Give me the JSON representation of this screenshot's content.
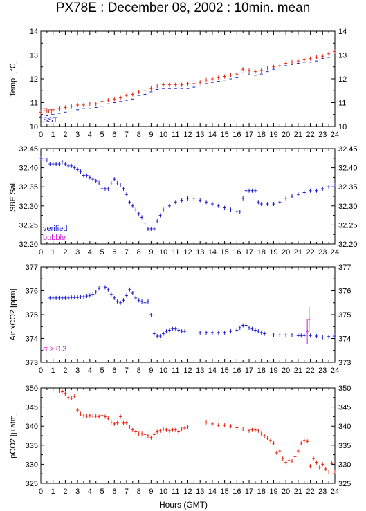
{
  "title": "PX78E : December 08, 2002 : 10min. mean",
  "colors": {
    "red": "#e8210f",
    "blue": "#1b1bcc",
    "magenta": "#d21ad2",
    "axis": "#000000"
  },
  "chart_data": [
    {
      "type": "scatter",
      "ylabel": "Temp. [°C]",
      "xlim": [
        0,
        24
      ],
      "ylim": [
        10,
        14
      ],
      "xticks": [
        0,
        1,
        2,
        3,
        4,
        5,
        6,
        7,
        8,
        9,
        10,
        11,
        12,
        13,
        14,
        15,
        16,
        17,
        18,
        19,
        20,
        21,
        22,
        23,
        24
      ],
      "yticks": [
        10,
        11,
        12,
        13,
        14
      ],
      "legend": {
        "placement": "bottom-left"
      },
      "series": [
        {
          "name": "Eq",
          "color": "red",
          "errorbars": true,
          "x": [
            0,
            0.5,
            1,
            1.5,
            2,
            2.5,
            3,
            3.5,
            4,
            4.5,
            5,
            5.5,
            6,
            6.5,
            7,
            7.5,
            8,
            8.5,
            9,
            9.5,
            10,
            10.5,
            11,
            11.5,
            12,
            12.5,
            13,
            13.5,
            14,
            14.5,
            15,
            15.5,
            16,
            16.5,
            17,
            17.5,
            18,
            18.5,
            19,
            19.5,
            20,
            20.5,
            21,
            21.5,
            22,
            22.5,
            23,
            23.5,
            24
          ],
          "y": [
            10.6,
            10.65,
            10.7,
            10.75,
            10.8,
            10.85,
            10.9,
            10.9,
            10.95,
            10.95,
            11.05,
            11.1,
            11.15,
            11.2,
            11.3,
            11.35,
            11.45,
            11.5,
            11.6,
            11.7,
            11.75,
            11.75,
            11.75,
            11.75,
            11.8,
            11.8,
            11.85,
            11.95,
            12.0,
            12.05,
            12.1,
            12.15,
            12.2,
            12.4,
            12.35,
            12.3,
            12.35,
            12.45,
            12.5,
            12.55,
            12.65,
            12.7,
            12.75,
            12.8,
            12.85,
            12.9,
            12.95,
            13.05,
            13.15
          ]
        },
        {
          "name": "SST",
          "color": "blue",
          "errorbars": false,
          "x": [
            0,
            0.5,
            1,
            1.5,
            2,
            2.5,
            3,
            3.5,
            4,
            4.5,
            5,
            5.5,
            6,
            6.5,
            7,
            7.5,
            8,
            8.5,
            9,
            9.5,
            10,
            10.5,
            11,
            11.5,
            12,
            12.5,
            13,
            13.5,
            14,
            14.5,
            15,
            15.5,
            16,
            16.5,
            17,
            17.5,
            18,
            18.5,
            19,
            19.5,
            20,
            20.5,
            21,
            21.5,
            22,
            22.5,
            23,
            23.5,
            24
          ],
          "y": [
            10.4,
            10.45,
            10.5,
            10.55,
            10.6,
            10.65,
            10.7,
            10.75,
            10.75,
            10.8,
            10.85,
            10.95,
            11.0,
            11.05,
            11.1,
            11.15,
            11.3,
            11.35,
            11.45,
            11.55,
            11.6,
            11.6,
            11.6,
            11.6,
            11.6,
            11.65,
            11.7,
            11.8,
            11.85,
            11.9,
            11.95,
            12.0,
            12.05,
            12.25,
            12.2,
            12.15,
            12.2,
            12.3,
            12.4,
            12.45,
            12.55,
            12.6,
            12.65,
            12.7,
            12.7,
            12.75,
            12.85,
            12.9,
            13.0
          ]
        }
      ]
    },
    {
      "type": "scatter",
      "ylabel": "SBE Sal.",
      "xlim": [
        0,
        24
      ],
      "ylim": [
        32.2,
        32.45
      ],
      "xticks": [
        0,
        1,
        2,
        3,
        4,
        5,
        6,
        7,
        8,
        9,
        10,
        11,
        12,
        13,
        14,
        15,
        16,
        17,
        18,
        19,
        20,
        21,
        22,
        23,
        24
      ],
      "yticks": [
        32.2,
        32.25,
        32.3,
        32.35,
        32.4,
        32.45
      ],
      "legend": {
        "placement": "bottom-left"
      },
      "series": [
        {
          "name": "verified",
          "color": "blue",
          "errorbars": true,
          "x": [
            0,
            0.25,
            0.5,
            0.75,
            1,
            1.25,
            1.5,
            1.75,
            2,
            2.25,
            2.5,
            2.75,
            3,
            3.25,
            3.5,
            3.75,
            4,
            4.25,
            4.5,
            4.75,
            5,
            5.25,
            5.5,
            5.75,
            6,
            6.25,
            6.5,
            6.75,
            7,
            7.25,
            7.5,
            7.75,
            8,
            8.25,
            8.5,
            8.75,
            9,
            9.25,
            9.5,
            9.75,
            10,
            10.5,
            11,
            11.5,
            12,
            12.5,
            13,
            13.5,
            14,
            14.5,
            15,
            15.5,
            16,
            16.25,
            16.5,
            16.75,
            17,
            17.25,
            17.5,
            17.75,
            18,
            18.5,
            19,
            19.5,
            20,
            20.5,
            21,
            21.5,
            22,
            22.5,
            23,
            23.5,
            24
          ],
          "y": [
            32.425,
            32.42,
            32.42,
            32.41,
            32.41,
            32.41,
            32.41,
            32.415,
            32.41,
            32.405,
            32.405,
            32.4,
            32.395,
            32.39,
            32.38,
            32.38,
            32.375,
            32.37,
            32.365,
            32.36,
            32.345,
            32.345,
            32.345,
            32.36,
            32.37,
            32.36,
            32.355,
            32.345,
            32.33,
            32.31,
            32.3,
            32.29,
            32.28,
            32.27,
            32.255,
            32.24,
            32.24,
            32.24,
            32.26,
            32.275,
            32.29,
            32.3,
            32.31,
            32.315,
            32.32,
            32.32,
            32.315,
            32.31,
            32.305,
            32.3,
            32.295,
            32.29,
            32.285,
            32.285,
            32.32,
            32.34,
            32.34,
            32.34,
            32.34,
            32.31,
            32.305,
            32.305,
            32.305,
            32.31,
            32.32,
            32.325,
            32.33,
            32.335,
            32.34,
            32.34,
            32.345,
            32.35,
            32.355
          ]
        },
        {
          "name": "bubble",
          "color": "magenta",
          "errorbars": false,
          "x": [],
          "y": []
        }
      ]
    },
    {
      "type": "scatter",
      "ylabel": "Air xCO2 [ppm]",
      "xlim": [
        0,
        24
      ],
      "ylim": [
        373,
        377
      ],
      "xticks": [
        0,
        1,
        2,
        3,
        4,
        5,
        6,
        7,
        8,
        9,
        10,
        11,
        12,
        13,
        14,
        15,
        16,
        17,
        18,
        19,
        20,
        21,
        22,
        23,
        24
      ],
      "yticks": [
        373,
        374,
        375,
        376,
        377
      ],
      "annotation": "σ ≥ 0.3",
      "series": [
        {
          "name": "",
          "color": "blue",
          "errorbars": true,
          "x": [
            0.75,
            1,
            1.25,
            1.5,
            1.75,
            2,
            2.25,
            2.5,
            2.75,
            3,
            3.25,
            3.5,
            3.75,
            4,
            4.25,
            4.5,
            4.75,
            5,
            5.25,
            5.5,
            5.75,
            6,
            6.25,
            6.5,
            6.75,
            7,
            7.25,
            7.5,
            7.75,
            8,
            8.25,
            8.5,
            8.75,
            9,
            9.25,
            9.5,
            9.75,
            10,
            10.25,
            10.5,
            10.75,
            11,
            11.25,
            11.5,
            11.75,
            13,
            13.5,
            14,
            14.5,
            15,
            15.5,
            16,
            16.25,
            16.5,
            16.75,
            17,
            17.25,
            17.5,
            17.75,
            18,
            18.25,
            19,
            19.5,
            20,
            20.5,
            21,
            21.25,
            21.5,
            22,
            22.5,
            23,
            23.5,
            24
          ],
          "y": [
            375.7,
            375.7,
            375.7,
            375.7,
            375.7,
            375.7,
            375.7,
            375.72,
            375.72,
            375.72,
            375.75,
            375.75,
            375.78,
            375.8,
            375.85,
            375.95,
            376.1,
            376.2,
            376.15,
            376.05,
            375.85,
            375.7,
            375.55,
            375.5,
            375.6,
            375.8,
            376.05,
            375.9,
            375.7,
            375.6,
            375.55,
            375.5,
            375.55,
            375.0,
            374.2,
            374.1,
            374.1,
            374.2,
            374.3,
            374.35,
            374.4,
            374.4,
            374.35,
            374.3,
            374.3,
            374.25,
            374.25,
            374.25,
            374.25,
            374.25,
            374.3,
            374.35,
            374.45,
            374.55,
            374.55,
            374.45,
            374.4,
            374.35,
            374.3,
            374.25,
            374.2,
            374.15,
            374.15,
            374.15,
            374.15,
            374.12,
            374.12,
            374.12,
            374.12,
            374.1,
            374.05,
            374.08,
            374.1
          ]
        },
        {
          "name": "",
          "color": "magenta",
          "errorbars": true,
          "x": [
            21.75,
            21.9
          ],
          "y": [
            374.3,
            374.8
          ]
        }
      ]
    },
    {
      "type": "scatter",
      "ylabel": "pCO2 [μ atm]",
      "xlabel": "Hours (GMT)",
      "xlim": [
        0,
        24
      ],
      "ylim": [
        325,
        350
      ],
      "xticks": [
        0,
        1,
        2,
        3,
        4,
        5,
        6,
        7,
        8,
        9,
        10,
        11,
        12,
        13,
        14,
        15,
        16,
        17,
        18,
        19,
        20,
        21,
        22,
        23,
        24
      ],
      "yticks": [
        325,
        330,
        335,
        340,
        345,
        350
      ],
      "series": [
        {
          "name": "",
          "color": "red",
          "errorbars": true,
          "x": [
            1.5,
            1.75,
            2,
            2.25,
            2.5,
            2.75,
            3,
            3.25,
            3.5,
            3.75,
            4,
            4.25,
            4.5,
            4.75,
            5,
            5.25,
            5.5,
            5.75,
            6,
            6.25,
            6.5,
            6.75,
            7,
            7.25,
            7.5,
            7.75,
            8,
            8.25,
            8.5,
            8.75,
            9,
            9.25,
            9.5,
            9.75,
            10,
            10.25,
            10.5,
            10.75,
            11,
            11.25,
            11.5,
            11.75,
            12,
            13.5,
            14,
            14.5,
            15,
            15.5,
            16,
            16.5,
            17,
            17.25,
            17.5,
            17.75,
            18,
            18.25,
            18.5,
            18.75,
            19,
            19.25,
            19.5,
            19.75,
            20,
            20.25,
            20.5,
            20.75,
            21,
            21.25,
            21.5,
            21.75,
            22,
            22.25,
            22.5,
            22.75,
            23,
            23.25,
            23.5,
            23.75,
            24
          ],
          "y": [
            349.2,
            349.0,
            348.5,
            347.5,
            347.3,
            347.8,
            344.2,
            343.2,
            342.7,
            342.6,
            342.8,
            342.6,
            342.6,
            342.5,
            342.8,
            342.5,
            342.0,
            341.0,
            340.6,
            340.8,
            342.5,
            340.8,
            340.8,
            339.8,
            339.0,
            338.5,
            338.0,
            338.0,
            337.8,
            337.5,
            337.0,
            337.8,
            338.5,
            338.8,
            339.2,
            339.0,
            338.8,
            339.0,
            339.0,
            338.5,
            339.2,
            339.5,
            339.8,
            341.0,
            340.6,
            340.2,
            340.2,
            340.0,
            339.6,
            339.2,
            338.8,
            339.0,
            339.0,
            338.8,
            338.0,
            337.5,
            336.8,
            336.2,
            335.5,
            333.0,
            333.5,
            331.5,
            330.5,
            331.0,
            330.8,
            332.0,
            333.5,
            335.5,
            336.2,
            336.0,
            329.5,
            331.5,
            330.5,
            329.2,
            330.0,
            328.8,
            328.0,
            330.2,
            328.0
          ]
        }
      ]
    }
  ]
}
